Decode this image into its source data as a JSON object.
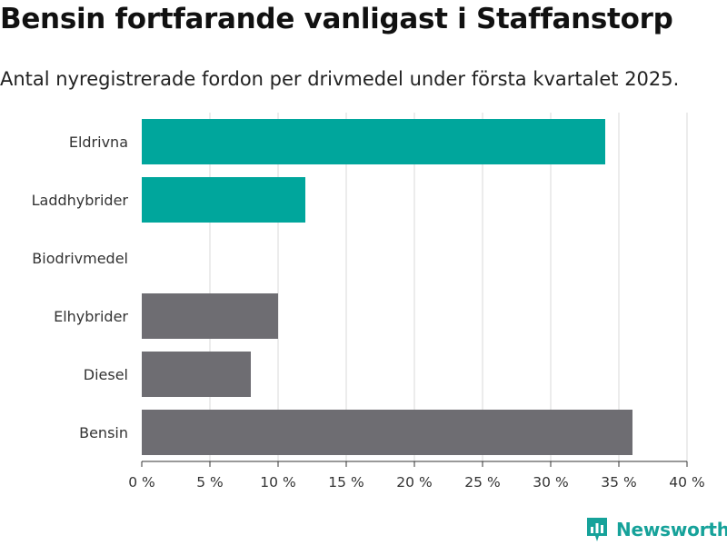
{
  "title": "Bensin fortfarande vanligast i Staffanstorp",
  "subtitle": "Antal nyregistrerade fordon per drivmedel under första kvartalet 2025.",
  "brand": "Newsworthy",
  "colors": {
    "highlight": "#00a69c",
    "base": "#6e6d72",
    "grid": "#d9d9d9",
    "brand": "#16a29a"
  },
  "icons": {
    "brand_logo": "bar-chart-badge-icon"
  },
  "chart_data": {
    "type": "bar",
    "orientation": "horizontal",
    "categories": [
      "Eldrivna",
      "Laddhybrider",
      "Biodrivmedel",
      "Elhybrider",
      "Diesel",
      "Bensin"
    ],
    "values": [
      34,
      12,
      0,
      10,
      8,
      36
    ],
    "bar_colors": [
      "#00a69c",
      "#00a69c",
      "#00a69c",
      "#6e6d72",
      "#6e6d72",
      "#6e6d72"
    ],
    "xlim": [
      0,
      40
    ],
    "xticks": [
      0,
      5,
      10,
      15,
      20,
      25,
      30,
      35,
      40
    ],
    "xtick_labels": [
      "0 %",
      "5 %",
      "10 %",
      "15 %",
      "20 %",
      "25 %",
      "30 %",
      "35 %",
      "40 %"
    ],
    "grid": true
  }
}
